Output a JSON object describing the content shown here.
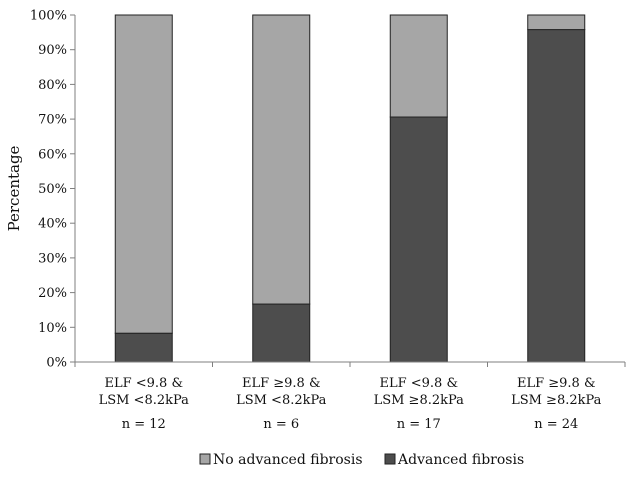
{
  "chart_data": {
    "type": "bar",
    "stacked": true,
    "percent": true,
    "title": "",
    "xlabel": "",
    "ylabel": "Percentage",
    "ylim": [
      0,
      100
    ],
    "yticks": [
      "0%",
      "10%",
      "20%",
      "30%",
      "40%",
      "50%",
      "60%",
      "70%",
      "80%",
      "90%",
      "100%"
    ],
    "categories": [
      {
        "line1": "ELF <9.8 &",
        "line2": "LSM <8.2kPa",
        "n": "n = 12"
      },
      {
        "line1": "ELF ≥9.8 &",
        "line2": "LSM <8.2kPa",
        "n": "n = 6"
      },
      {
        "line1": "ELF <9.8 &",
        "line2": "LSM ≥8.2kPa",
        "n": "n = 17"
      },
      {
        "line1": "ELF ≥9.8 &",
        "line2": "LSM ≥8.2kPa",
        "n": "n = 24"
      }
    ],
    "series": [
      {
        "name": "Advanced fibrosis",
        "color": "#4d4d4d",
        "values": [
          8.3,
          16.7,
          70.6,
          95.8
        ]
      },
      {
        "name": "No advanced fibrosis",
        "color": "#a6a6a6",
        "values": [
          91.7,
          83.3,
          29.4,
          4.2
        ]
      }
    ],
    "legend_order": [
      "No advanced fibrosis",
      "Advanced fibrosis"
    ],
    "legend_position": "bottom",
    "grid": false
  }
}
